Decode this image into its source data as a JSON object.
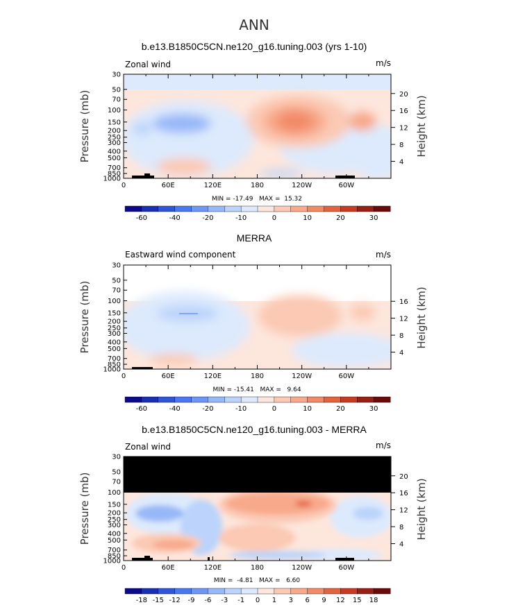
{
  "figure": {
    "title": "ANN"
  },
  "colors": {
    "zonal_scale": [
      "#0a0a8a",
      "#1a2fb4",
      "#2f55d9",
      "#4a78f0",
      "#6e96f5",
      "#97b8f7",
      "#bcd4fb",
      "#ddeafd",
      "#fde6dc",
      "#fbc9b4",
      "#f8a98b",
      "#f28a68",
      "#e2633d",
      "#c83a22",
      "#981f14",
      "#6b0a08"
    ],
    "anom_scale": [
      "#0a0a8a",
      "#1a2fb4",
      "#2f55d9",
      "#4a78f0",
      "#6e96f5",
      "#97b8f7",
      "#bcd4fb",
      "#ddeafd",
      "#fde6dc",
      "#fbc9b4",
      "#f8a98b",
      "#f28a68",
      "#e2633d",
      "#c83a22",
      "#981f14",
      "#6b0a08"
    ]
  },
  "chart_data": [
    {
      "type": "heatmap",
      "title": "b.e13.B1850C5CN.ne120_g16.tuning.003 (yrs 1-10)",
      "left_label": "Zonal wind",
      "units": "m/s",
      "ylabel": "Pressure (mb)",
      "ylabel_right": "Height (km)",
      "yticks": [
        "30",
        "50",
        "70",
        "100",
        "150",
        "200",
        "250",
        "300",
        "400",
        "500",
        "700",
        "850",
        "1000"
      ],
      "height_ticks": [
        "20",
        "16",
        "12",
        "8",
        "4"
      ],
      "xticks": [
        "0",
        "60E",
        "120E",
        "180",
        "120W",
        "60W"
      ],
      "stats": "MIN = -17.49   MAX =  15.32",
      "colorbar_labels": [
        "-60",
        "-40",
        "-20",
        "-10",
        "0",
        "10",
        "20",
        "30"
      ],
      "features": [
        {
          "kind": "easterly",
          "lon": 90,
          "p": 170,
          "value": -15
        },
        {
          "kind": "westerly",
          "lon": 205,
          "p": 150,
          "value": 15
        },
        {
          "kind": "westerly",
          "lon": 302,
          "p": 150,
          "value": 8
        },
        {
          "kind": "westerly",
          "lon": 75,
          "p": 750,
          "value": 6
        }
      ]
    },
    {
      "type": "heatmap",
      "title": "MERRA",
      "left_label": "Eastward wind component",
      "units": "m/s",
      "ylabel": "Pressure (mb)",
      "ylabel_right": "Height (km)",
      "yticks": [
        "30",
        "50",
        "70",
        "100",
        "150",
        "200",
        "250",
        "300",
        "400",
        "500",
        "700",
        "850",
        "1000"
      ],
      "height_ticks": [
        "16",
        "12",
        "8",
        "4"
      ],
      "xticks": [
        "0",
        "60E",
        "120E",
        "180",
        "120W",
        "60W"
      ],
      "stats": "MIN = -15.41   MAX =   9.64",
      "colorbar_labels": [
        "-60",
        "-40",
        "-20",
        "-10",
        "0",
        "10",
        "20",
        "30"
      ],
      "features": [
        {
          "kind": "easterly",
          "lon": 90,
          "p": 150,
          "value": -15
        },
        {
          "kind": "westerly",
          "lon": 205,
          "p": 150,
          "value": 9
        },
        {
          "kind": "westerly",
          "lon": 302,
          "p": 150,
          "value": 8
        }
      ]
    },
    {
      "type": "heatmap",
      "title": "b.e13.B1850C5CN.ne120_g16.tuning.003 - MERRA",
      "left_label": "Zonal wind",
      "units": "m/s",
      "ylabel": "Pressure (mb)",
      "ylabel_right": "Height (km)",
      "yticks": [
        "30",
        "50",
        "70",
        "100",
        "150",
        "200",
        "250",
        "300",
        "400",
        "500",
        "700",
        "850",
        "1000"
      ],
      "height_ticks": [
        "20",
        "16",
        "12",
        "8",
        "4"
      ],
      "xticks": [
        "0",
        "60E",
        "120E",
        "180",
        "120W",
        "60W"
      ],
      "stats": "MIN =  -4.81   MAX =   6.60",
      "colorbar_labels": [
        "-18",
        "-15",
        "-12",
        "-9",
        "-6",
        "-3",
        "-1",
        "0",
        "1",
        "3",
        "6",
        "9",
        "12",
        "15",
        "18"
      ],
      "features": [
        {
          "kind": "negative",
          "lon": 40,
          "p": 200,
          "value": -4
        },
        {
          "kind": "positive",
          "lon": 220,
          "p": 150,
          "value": 6
        },
        {
          "kind": "positive",
          "lon": 60,
          "p": 650,
          "value": 3
        }
      ]
    }
  ]
}
